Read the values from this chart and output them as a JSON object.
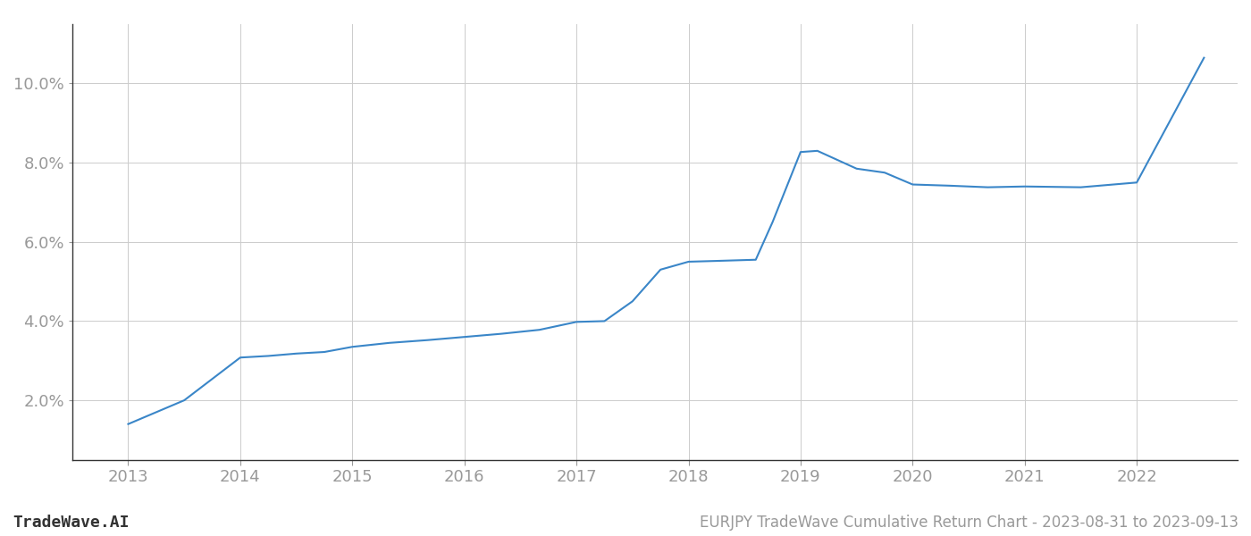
{
  "title": "EURJPY TradeWave Cumulative Return Chart - 2023-08-31 to 2023-09-13",
  "watermark": "TradeWave.AI",
  "line_color": "#3a86c8",
  "background_color": "#ffffff",
  "grid_color": "#cccccc",
  "x_values": [
    2013.0,
    2013.5,
    2014.0,
    2014.25,
    2014.5,
    2014.75,
    2015.0,
    2015.33,
    2015.67,
    2016.0,
    2016.33,
    2016.67,
    2017.0,
    2017.25,
    2017.5,
    2017.75,
    2018.0,
    2018.25,
    2018.6,
    2018.75,
    2019.0,
    2019.15,
    2019.5,
    2019.75,
    2020.0,
    2020.33,
    2020.67,
    2021.0,
    2021.5,
    2022.0,
    2022.6
  ],
  "y_values": [
    1.4,
    2.0,
    3.08,
    3.12,
    3.18,
    3.22,
    3.35,
    3.45,
    3.52,
    3.6,
    3.68,
    3.78,
    3.98,
    4.0,
    4.5,
    5.3,
    5.5,
    5.52,
    5.55,
    6.5,
    8.27,
    8.3,
    7.85,
    7.75,
    7.45,
    7.42,
    7.38,
    7.4,
    7.38,
    7.5,
    10.65
  ],
  "xlim": [
    2012.5,
    2022.9
  ],
  "ylim": [
    0.5,
    11.5
  ],
  "yticks": [
    2.0,
    4.0,
    6.0,
    8.0,
    10.0
  ],
  "xticks": [
    2013,
    2014,
    2015,
    2016,
    2017,
    2018,
    2019,
    2020,
    2021,
    2022
  ],
  "tick_label_color": "#999999",
  "axis_color": "#333333",
  "label_fontsize": 13,
  "watermark_fontsize": 13,
  "title_fontsize": 12,
  "left_spine_color": "#333333"
}
